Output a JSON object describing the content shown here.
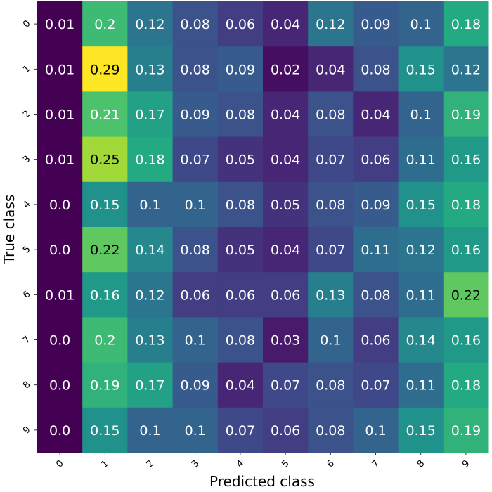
{
  "chart_data": {
    "type": "heatmap",
    "title": "",
    "xlabel": "Predicted class",
    "ylabel": "True class",
    "x_ticks": [
      "0",
      "1",
      "2",
      "3",
      "4",
      "5",
      "6",
      "7",
      "8",
      "9"
    ],
    "y_ticks": [
      "0",
      "1",
      "2",
      "3",
      "4",
      "5",
      "6",
      "7",
      "8",
      "9"
    ],
    "colormap": "viridis",
    "value_range": [
      0.01,
      0.29
    ],
    "values": [
      [
        0.01,
        0.2,
        0.12,
        0.08,
        0.06,
        0.04,
        0.12,
        0.09,
        0.1,
        0.18
      ],
      [
        0.01,
        0.29,
        0.13,
        0.08,
        0.09,
        0.02,
        0.04,
        0.08,
        0.15,
        0.12
      ],
      [
        0.01,
        0.21,
        0.17,
        0.09,
        0.08,
        0.04,
        0.08,
        0.04,
        0.1,
        0.19
      ],
      [
        0.01,
        0.25,
        0.18,
        0.07,
        0.05,
        0.04,
        0.07,
        0.06,
        0.11,
        0.16
      ],
      [
        0.0,
        0.15,
        0.1,
        0.1,
        0.08,
        0.05,
        0.08,
        0.09,
        0.15,
        0.18
      ],
      [
        0.0,
        0.22,
        0.14,
        0.08,
        0.05,
        0.04,
        0.07,
        0.11,
        0.12,
        0.16
      ],
      [
        0.01,
        0.16,
        0.12,
        0.06,
        0.06,
        0.06,
        0.13,
        0.08,
        0.11,
        0.22
      ],
      [
        0.0,
        0.2,
        0.13,
        0.1,
        0.08,
        0.03,
        0.1,
        0.06,
        0.14,
        0.16
      ],
      [
        0.0,
        0.19,
        0.17,
        0.09,
        0.04,
        0.07,
        0.08,
        0.07,
        0.11,
        0.18
      ],
      [
        0.0,
        0.15,
        0.1,
        0.1,
        0.07,
        0.06,
        0.08,
        0.1,
        0.15,
        0.19
      ]
    ],
    "value_labels": [
      [
        "0.01",
        "0.2",
        "0.12",
        "0.08",
        "0.06",
        "0.04",
        "0.12",
        "0.09",
        "0.1",
        "0.18"
      ],
      [
        "0.01",
        "0.29",
        "0.13",
        "0.08",
        "0.09",
        "0.02",
        "0.04",
        "0.08",
        "0.15",
        "0.12"
      ],
      [
        "0.01",
        "0.21",
        "0.17",
        "0.09",
        "0.08",
        "0.04",
        "0.08",
        "0.04",
        "0.1",
        "0.19"
      ],
      [
        "0.01",
        "0.25",
        "0.18",
        "0.07",
        "0.05",
        "0.04",
        "0.07",
        "0.06",
        "0.11",
        "0.16"
      ],
      [
        "0.0",
        "0.15",
        "0.1",
        "0.1",
        "0.08",
        "0.05",
        "0.08",
        "0.09",
        "0.15",
        "0.18"
      ],
      [
        "0.0",
        "0.22",
        "0.14",
        "0.08",
        "0.05",
        "0.04",
        "0.07",
        "0.11",
        "0.12",
        "0.16"
      ],
      [
        "0.01",
        "0.16",
        "0.12",
        "0.06",
        "0.06",
        "0.06",
        "0.13",
        "0.08",
        "0.11",
        "0.22"
      ],
      [
        "0.0",
        "0.2",
        "0.13",
        "0.1",
        "0.08",
        "0.03",
        "0.1",
        "0.06",
        "0.14",
        "0.16"
      ],
      [
        "0.0",
        "0.19",
        "0.17",
        "0.09",
        "0.04",
        "0.07",
        "0.08",
        "0.07",
        "0.11",
        "0.18"
      ],
      [
        "0.0",
        "0.15",
        "0.1",
        "0.1",
        "0.07",
        "0.06",
        "0.08",
        "0.1",
        "0.15",
        "0.19"
      ]
    ],
    "grid": false,
    "legend": "none"
  }
}
